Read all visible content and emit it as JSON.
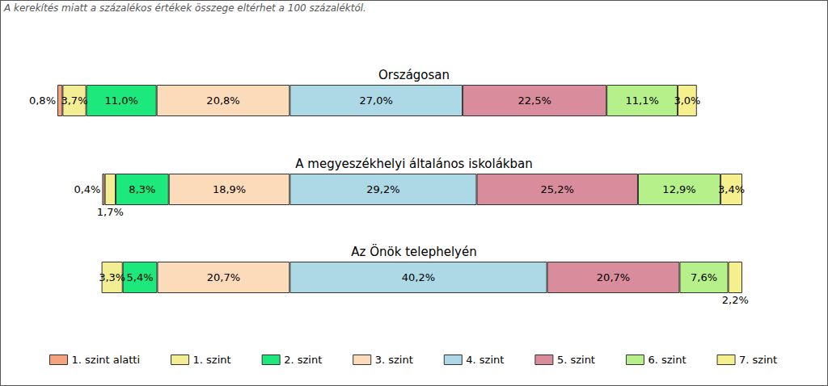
{
  "chart_data": {
    "type": "bar",
    "orientation": "horizontal",
    "stacked": true,
    "data_labels": true,
    "tick_labels": false,
    "legend": "bottom",
    "annotations": [
      "A kerekítés miatt a százalékos értékek összege eltérhet a 100 százaléktól."
    ],
    "categories": [
      "Országosan",
      "A megyeszékhelyi általános iskolákban",
      "Az Önök telephelyén"
    ],
    "series": [
      {
        "name": "1. szint alatti",
        "color": "#f5a27f",
        "values": [
          0.8,
          0.4,
          null
        ],
        "value_labels": [
          "0,8%",
          "0,4%",
          null
        ]
      },
      {
        "name": "1. szint",
        "color": "#f3ee93",
        "values": [
          3.7,
          1.7,
          3.3
        ],
        "value_labels": [
          "3,7%",
          "1,7%",
          "3,3%"
        ]
      },
      {
        "name": "2. szint",
        "color": "#1de87c",
        "values": [
          11.0,
          8.3,
          5.4
        ],
        "value_labels": [
          "11,0%",
          "8,3%",
          "5,4%"
        ]
      },
      {
        "name": "3. szint",
        "color": "#fcdbbb",
        "values": [
          20.8,
          18.9,
          20.7
        ],
        "value_labels": [
          "20,8%",
          "18,9%",
          "20,7%"
        ]
      },
      {
        "name": "4. szint",
        "color": "#add8e6",
        "values": [
          27.0,
          29.2,
          40.2
        ],
        "value_labels": [
          "27,0%",
          "29,2%",
          "40,2%"
        ]
      },
      {
        "name": "5. szint",
        "color": "#d98c9b",
        "values": [
          22.5,
          25.2,
          20.7
        ],
        "value_labels": [
          "22,5%",
          "25,2%",
          "20,7%"
        ]
      },
      {
        "name": "6. szint",
        "color": "#b6f08b",
        "values": [
          11.1,
          12.9,
          7.6
        ],
        "value_labels": [
          "11,1%",
          "12,9%",
          "7,6%"
        ]
      },
      {
        "name": "7. szint",
        "color": "#f5ef8d",
        "values": [
          3.0,
          3.4,
          2.2
        ],
        "value_labels": [
          "3,0%",
          "3,4%",
          "2,2%"
        ]
      }
    ]
  }
}
